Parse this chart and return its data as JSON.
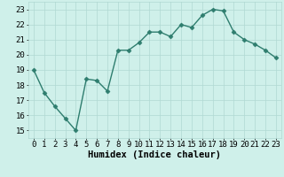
{
  "x": [
    0,
    1,
    2,
    3,
    4,
    5,
    6,
    7,
    8,
    9,
    10,
    11,
    12,
    13,
    14,
    15,
    16,
    17,
    18,
    19,
    20,
    21,
    22,
    23
  ],
  "y": [
    19.0,
    17.5,
    16.6,
    15.8,
    15.0,
    18.4,
    18.3,
    17.6,
    20.3,
    20.3,
    20.8,
    21.5,
    21.5,
    21.2,
    22.0,
    21.8,
    22.6,
    23.0,
    22.9,
    21.5,
    21.0,
    20.7,
    20.3,
    19.8
  ],
  "line_color": "#2e7d6e",
  "marker": "D",
  "markersize": 2.5,
  "linewidth": 1.0,
  "bg_color": "#cff0ea",
  "grid_color": "#b0d8d2",
  "xlabel": "Humidex (Indice chaleur)",
  "xlim": [
    -0.5,
    23.5
  ],
  "ylim": [
    14.5,
    23.5
  ],
  "yticks": [
    15,
    16,
    17,
    18,
    19,
    20,
    21,
    22,
    23
  ],
  "xticks": [
    0,
    1,
    2,
    3,
    4,
    5,
    6,
    7,
    8,
    9,
    10,
    11,
    12,
    13,
    14,
    15,
    16,
    17,
    18,
    19,
    20,
    21,
    22,
    23
  ],
  "xlabel_fontsize": 7.5,
  "tick_fontsize": 6.5
}
